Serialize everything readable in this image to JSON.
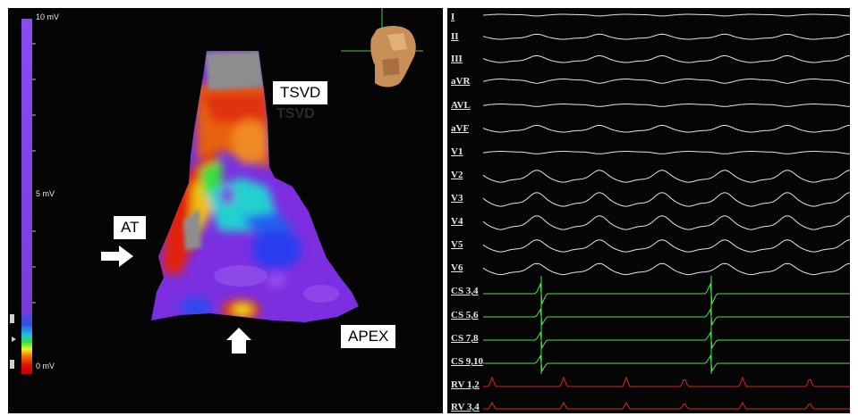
{
  "color_scale": {
    "max_label": "10 mV",
    "mid_label": "5 mV",
    "min_label": "0 mV"
  },
  "map_labels": {
    "tsvd": "TSVD",
    "tsvd_shadow": "TSVD",
    "at": "AT",
    "apex": "APEX"
  },
  "ecg": {
    "channels": [
      {
        "label": "I",
        "color": "#e6e6e6"
      },
      {
        "label": "II",
        "color": "#e6e6e6"
      },
      {
        "label": "III",
        "color": "#e6e6e6"
      },
      {
        "label": "aVR",
        "color": "#e6e6e6"
      },
      {
        "label": "AVL",
        "color": "#e6e6e6"
      },
      {
        "label": "aVF",
        "color": "#e6e6e6"
      },
      {
        "label": "V1",
        "color": "#e6e6e6"
      },
      {
        "label": "V2",
        "color": "#e6e6e6"
      },
      {
        "label": "V3",
        "color": "#e6e6e6"
      },
      {
        "label": "V4",
        "color": "#e6e6e6"
      },
      {
        "label": "V5",
        "color": "#e6e6e6"
      },
      {
        "label": "V6",
        "color": "#e6e6e6"
      },
      {
        "label": "CS 3,4",
        "color": "#49e34a"
      },
      {
        "label": "CS 5,6",
        "color": "#49e34a"
      },
      {
        "label": "CS 7,8",
        "color": "#49e34a"
      },
      {
        "label": "CS 9,10",
        "color": "#49e34a"
      },
      {
        "label": "RV 1,2",
        "color": "#e02424"
      },
      {
        "label": "RV 3,4",
        "color": "#e02424"
      }
    ]
  },
  "colors": {
    "panel_bg": "#050505",
    "scale_purple": "#7a3cd8",
    "map_purple": "#7b2fe0",
    "trace_white": "#e6e6e6",
    "trace_green": "#49e34a",
    "trace_red": "#e02424"
  }
}
